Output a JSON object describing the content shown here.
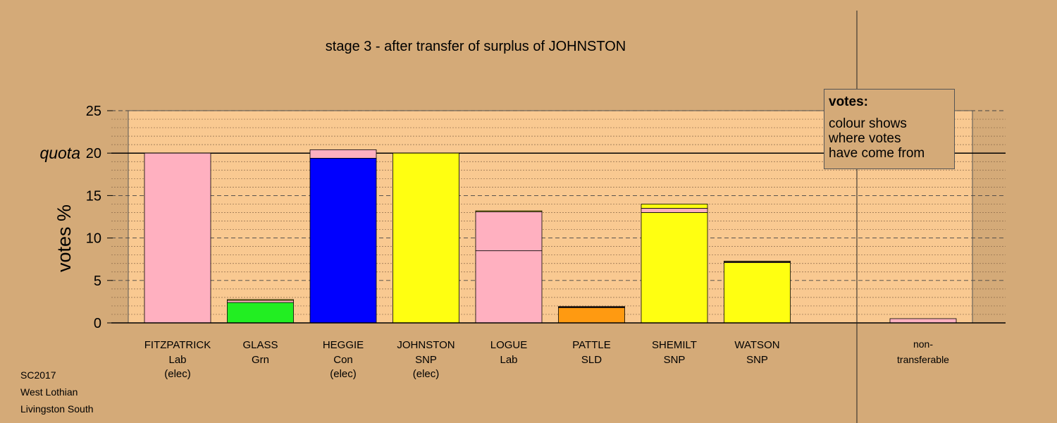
{
  "chart_data": {
    "type": "bar",
    "stacked": true,
    "title": "stage 3 - after transfer of surplus of JOHNSTON",
    "ylabel": "votes %",
    "ylim": [
      0,
      25
    ],
    "yticks": [
      0,
      5,
      10,
      15,
      20,
      25
    ],
    "quota": 20,
    "quota_label": "quota",
    "grid": "dashed major every 5, dotted minor every 1",
    "legend_position": "top-right",
    "legend": {
      "title": "votes:",
      "lines": [
        "colour shows",
        "where votes",
        "have come from"
      ]
    },
    "colors": {
      "Lab": "#ffb0c0",
      "Grn": "#22ee22",
      "Con": "#0000ff",
      "SNP": "#ffff11",
      "SLD": "#ff9a11",
      "panel": "#f9c991"
    },
    "candidates": [
      {
        "name": "FITZPATRICK",
        "party": "Lab",
        "status": "(elec)",
        "segments": [
          {
            "from": "Lab",
            "value": 20.0
          }
        ]
      },
      {
        "name": "GLASS",
        "party": "Grn",
        "status": "",
        "segments": [
          {
            "from": "Grn",
            "value": 2.4
          },
          {
            "from": "Lab",
            "value": 0.25
          },
          {
            "from": "SNP",
            "value": 0.1
          }
        ]
      },
      {
        "name": "HEGGIE",
        "party": "Con",
        "status": "(elec)",
        "segments": [
          {
            "from": "Con",
            "value": 19.4
          },
          {
            "from": "Lab",
            "value": 1.0
          }
        ]
      },
      {
        "name": "JOHNSTON",
        "party": "SNP",
        "status": "(elec)",
        "segments": [
          {
            "from": "SNP",
            "value": 20.0
          }
        ]
      },
      {
        "name": "LOGUE",
        "party": "Lab",
        "status": "",
        "segments": [
          {
            "from": "Lab",
            "value": 8.5
          },
          {
            "from": "Lab",
            "value": 4.6
          },
          {
            "from": "SNP",
            "value": 0.1
          }
        ]
      },
      {
        "name": "PATTLE",
        "party": "SLD",
        "status": "",
        "segments": [
          {
            "from": "SLD",
            "value": 1.8
          },
          {
            "from": "Lab",
            "value": 0.08
          },
          {
            "from": "SNP",
            "value": 0.05
          }
        ]
      },
      {
        "name": "SHEMILT",
        "party": "SNP",
        "status": "",
        "segments": [
          {
            "from": "SNP",
            "value": 13.0
          },
          {
            "from": "Lab",
            "value": 0.5
          },
          {
            "from": "SNP",
            "value": 0.5
          }
        ]
      },
      {
        "name": "WATSON",
        "party": "SNP",
        "status": "",
        "segments": [
          {
            "from": "SNP",
            "value": 7.1
          },
          {
            "from": "Lab",
            "value": 0.1
          },
          {
            "from": "SNP",
            "value": 0.08
          }
        ]
      }
    ],
    "nontransferable": {
      "label_line1": "non-",
      "label_line2": "transferable",
      "segments": [
        {
          "from": "Lab",
          "value": 0.5
        }
      ]
    }
  },
  "footer": {
    "line1": "SC2017",
    "line2": "West Lothian",
    "line3": "Livingston South"
  }
}
